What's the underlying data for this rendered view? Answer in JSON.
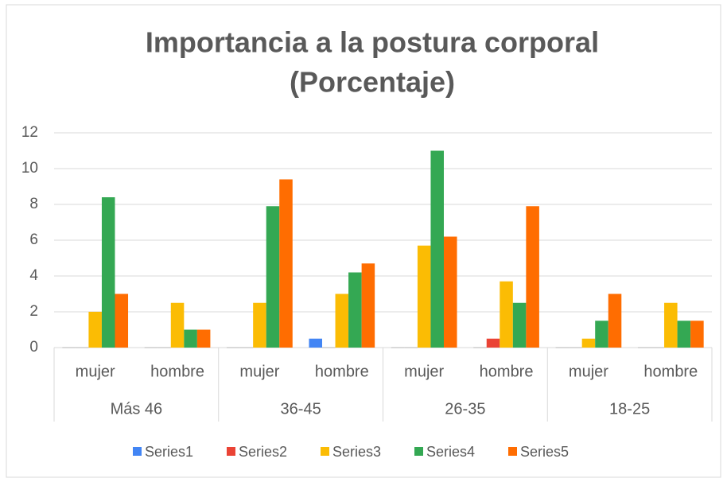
{
  "chart_data": {
    "type": "bar",
    "title": [
      "Importancia a la postura corporal",
      "(Porcentaje)"
    ],
    "categories": [
      "mujer",
      "hombre",
      "mujer",
      "hombre",
      "mujer",
      "hombre",
      "mujer",
      "hombre"
    ],
    "category_groups": [
      "Más 46",
      "36-45",
      "26-35",
      "18-25"
    ],
    "series": [
      {
        "name": "Series1",
        "color": "#4285f4",
        "values": [
          0,
          0,
          0,
          0.5,
          0,
          0,
          0,
          0
        ]
      },
      {
        "name": "Series2",
        "color": "#ea4335",
        "values": [
          0,
          0,
          0,
          0,
          0,
          0.5,
          0,
          0
        ]
      },
      {
        "name": "Series3",
        "color": "#fbbc04",
        "values": [
          2,
          2.5,
          2.5,
          3,
          5.7,
          3.7,
          0.5,
          2.5
        ]
      },
      {
        "name": "Series4",
        "color": "#34a853",
        "values": [
          8.4,
          1,
          7.9,
          4.2,
          11,
          2.5,
          1.5,
          1.5
        ]
      },
      {
        "name": "Series5",
        "color": "#ff6d01",
        "values": [
          3,
          1,
          9.4,
          4.7,
          6.2,
          7.9,
          3,
          1.5
        ]
      }
    ],
    "ylim": [
      0,
      12
    ],
    "yticks": [
      0,
      2,
      4,
      6,
      8,
      10,
      12
    ],
    "grid": true,
    "legend": "bottom"
  }
}
